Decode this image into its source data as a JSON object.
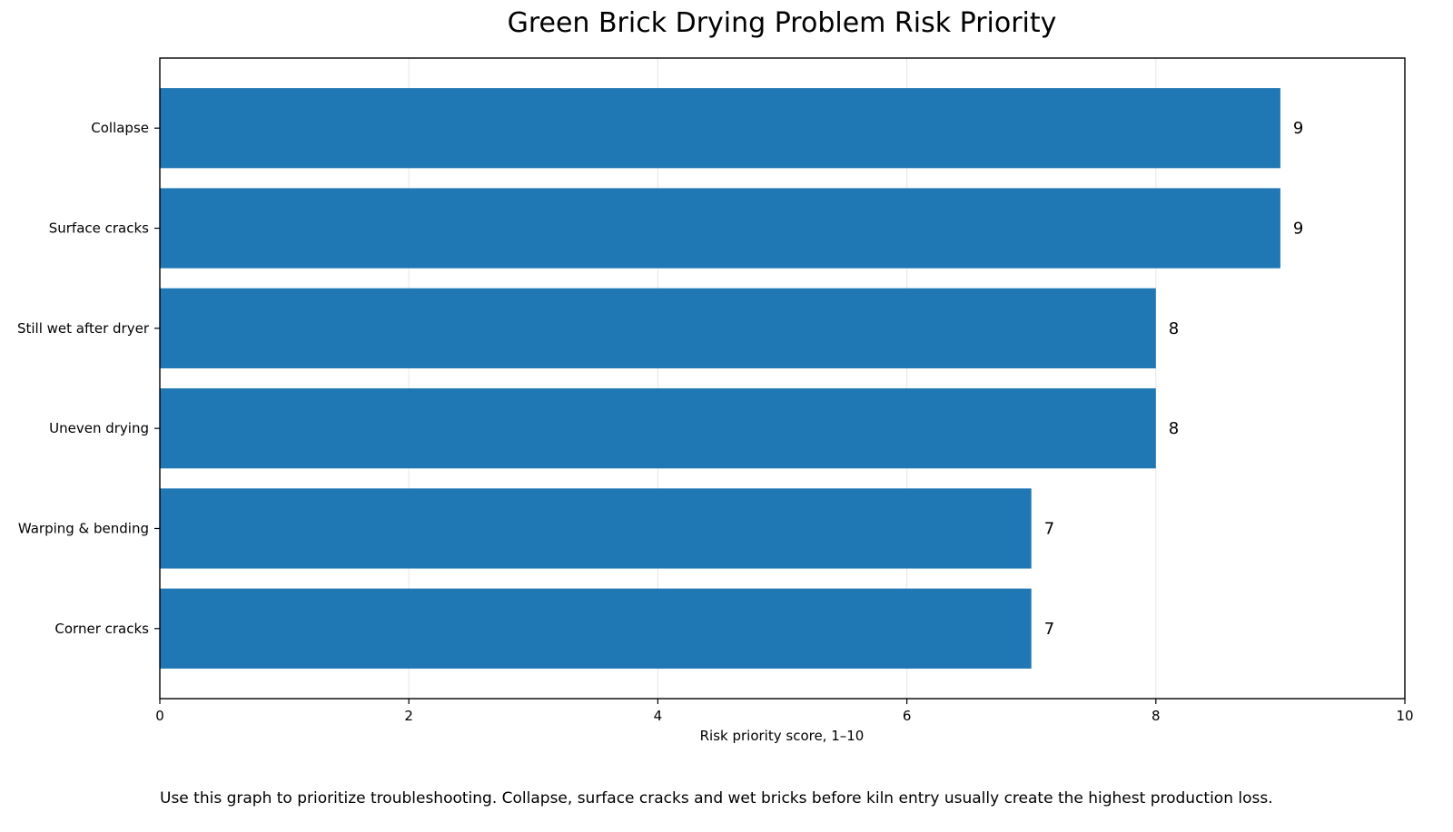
{
  "chart_data": {
    "type": "bar",
    "orientation": "horizontal",
    "title": "Green Brick Drying Problem Risk Priority",
    "xlabel": "Risk priority score, 1–10",
    "ylabel": "",
    "xlim": [
      0,
      10
    ],
    "xticks": [
      0,
      2,
      4,
      6,
      8,
      10
    ],
    "categories": [
      "Collapse",
      "Surface cracks",
      "Still wet after dryer",
      "Uneven drying",
      "Warping & bending",
      "Corner cracks"
    ],
    "values": [
      9,
      9,
      8,
      8,
      7,
      7
    ],
    "data_labels": [
      "9",
      "9",
      "8",
      "8",
      "7",
      "7"
    ],
    "bar_color": "#1f77b4",
    "grid": "vertical",
    "legend": "none"
  },
  "caption": "Use this graph to prioritize troubleshooting. Collapse, surface cracks and wet bricks before kiln entry usually create the highest production loss."
}
